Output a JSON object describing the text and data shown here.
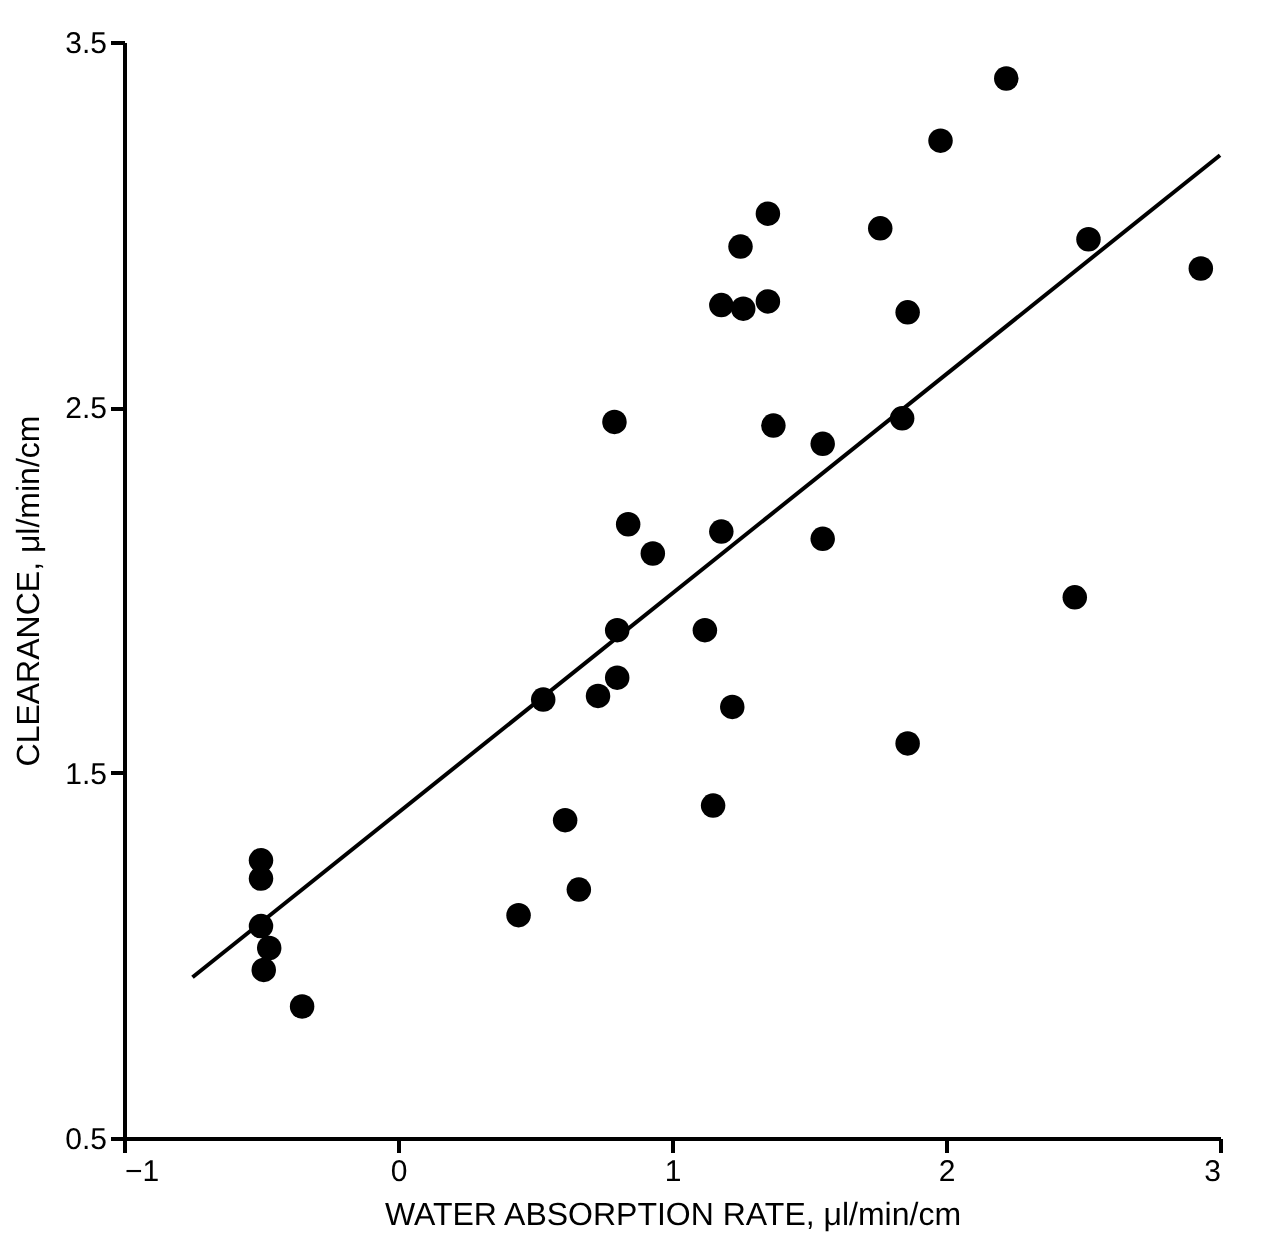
{
  "chart_data": {
    "type": "scatter",
    "xlabel": "WATER ABSORPTION RATE, μl/min/cm",
    "ylabel": "CLEARANCE, μl/min/cm",
    "xlim": [
      -1,
      3
    ],
    "xticks": [
      {
        "value": -1,
        "label": "−1"
      },
      0,
      1,
      2,
      3
    ],
    "ylim": [
      0.5,
      3.5
    ],
    "yticks": [
      0.5,
      1.5,
      2.5,
      3.5
    ],
    "grid": false,
    "marker": "circle",
    "series": [
      {
        "color": "#000000",
        "x": [
          2.22,
          1.98,
          1.35,
          1.25,
          1.76,
          2.52,
          2.93,
          1.18,
          1.26,
          1.35,
          1.86,
          0.79,
          1.37,
          1.55,
          1.84,
          0.84,
          0.93,
          1.18,
          1.55,
          2.47,
          0.8,
          1.12,
          0.53,
          0.73,
          0.8,
          1.22,
          1.86,
          0.61,
          1.15,
          -0.5,
          -0.5,
          -0.5,
          -0.47,
          -0.49,
          -0.35,
          0.44,
          0.66
        ],
        "values": [
          3.4,
          3.23,
          3.03,
          2.94,
          2.99,
          2.96,
          2.88,
          2.78,
          2.77,
          2.79,
          2.76,
          2.46,
          2.45,
          2.4,
          2.47,
          2.18,
          2.1,
          2.16,
          2.14,
          1.98,
          1.89,
          1.89,
          1.7,
          1.71,
          1.76,
          1.68,
          1.58,
          1.37,
          1.41,
          1.26,
          1.21,
          1.08,
          1.02,
          0.96,
          0.86,
          1.11,
          1.18
        ]
      },
      {
        "type": "line",
        "marker": "none",
        "color": "#000000",
        "x": [
          -0.75,
          3
        ],
        "values": [
          0.94,
          3.19
        ]
      }
    ]
  }
}
